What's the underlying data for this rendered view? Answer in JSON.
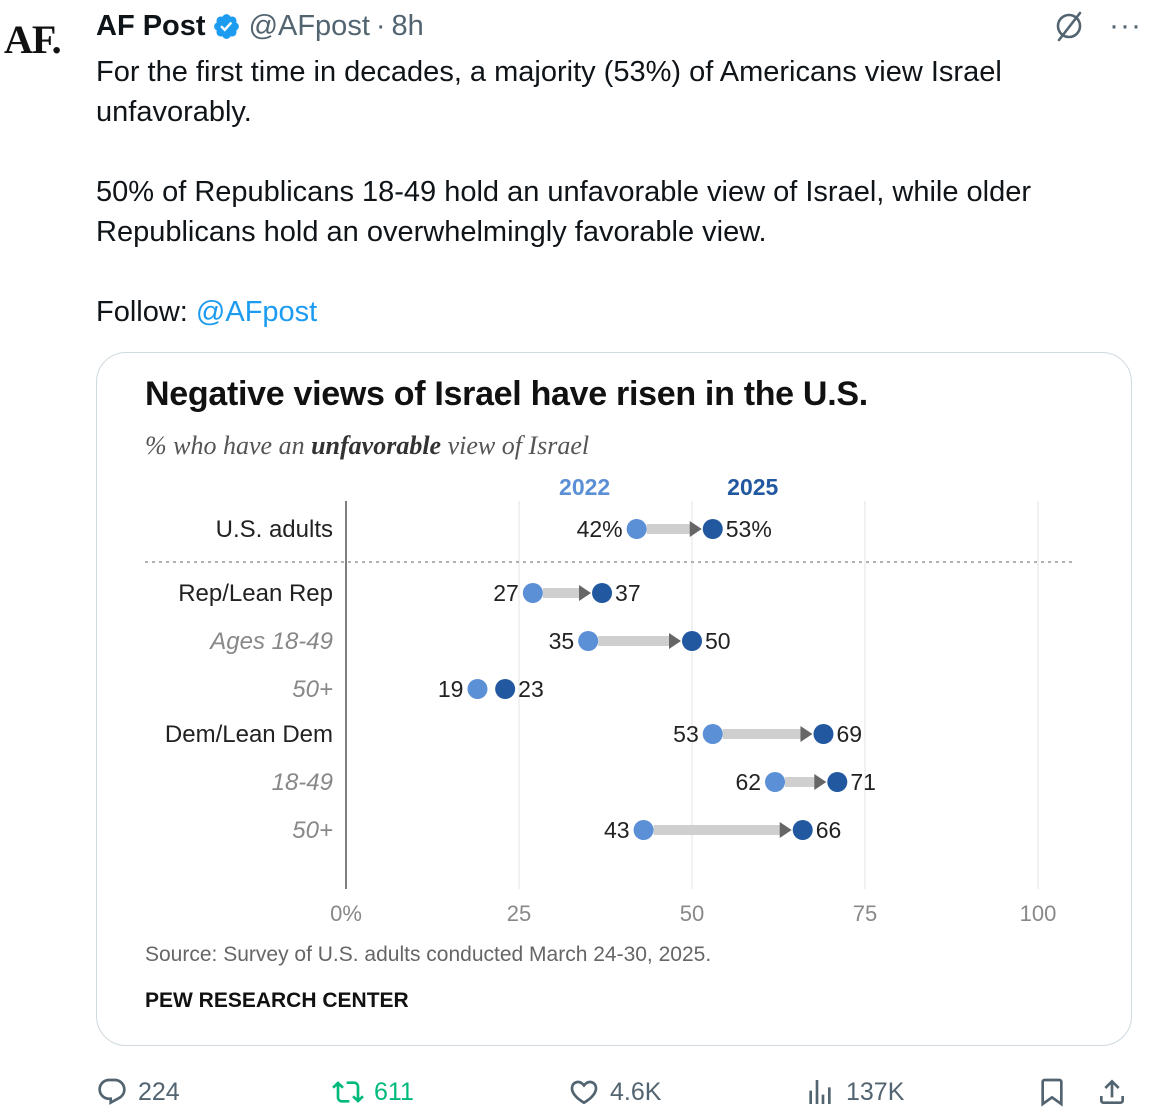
{
  "author": {
    "avatar_text": "AF.",
    "name": "AF Post",
    "handle": "@AFpost",
    "separator": "·",
    "time": "8h"
  },
  "tweet": {
    "line1": "For the first time in decades, a majority (53%) of Americans view Israel unfavorably.",
    "line2": "50% of Republicans 18-49 hold an unfavorable view of Israel, while older Republicans hold an overwhelmingly favorable view.",
    "follow_label": "Follow:",
    "follow_mention": "@AFpost"
  },
  "top_icons": {
    "grok": "grok-icon",
    "more": "···"
  },
  "chart_data": {
    "type": "dumbbell",
    "title": "Negative views of Israel have risen in the U.S.",
    "subtitle_pre": "% who have an ",
    "subtitle_bold": "unfavorable",
    "subtitle_post": " view of Israel",
    "series": [
      {
        "name": "2022",
        "color": "#5b8fd6"
      },
      {
        "name": "2025",
        "color": "#2158a0"
      }
    ],
    "rows": [
      {
        "label": "U.S. adults",
        "style": "bold",
        "v2022": 42,
        "v2025": 53,
        "l2022": "42%",
        "l2025": "53%"
      },
      {
        "label": "Rep/Lean Rep",
        "style": "bold",
        "v2022": 27,
        "v2025": 37,
        "l2022": "27",
        "l2025": "37"
      },
      {
        "label": "Ages 18-49",
        "style": "sub",
        "v2022": 35,
        "v2025": 50,
        "l2022": "35",
        "l2025": "50"
      },
      {
        "label": "50+",
        "style": "sub",
        "v2022": 19,
        "v2025": 23,
        "l2022": "19",
        "l2025": "23"
      },
      {
        "label": "Dem/Lean Dem",
        "style": "bold",
        "v2022": 53,
        "v2025": 69,
        "l2022": "53",
        "l2025": "69"
      },
      {
        "label": "18-49",
        "style": "sub",
        "v2022": 62,
        "v2025": 71,
        "l2022": "62",
        "l2025": "71"
      },
      {
        "label": "50+",
        "style": "sub",
        "v2022": 43,
        "v2025": 66,
        "l2022": "43",
        "l2025": "66"
      }
    ],
    "xlim": [
      0,
      100
    ],
    "xticks": [
      0,
      25,
      50,
      75,
      100
    ],
    "xtick_labels": [
      "0%",
      "25",
      "50",
      "75",
      "100"
    ],
    "grid": true,
    "source": "Source: Survey of U.S. adults conducted March 24-30, 2025.",
    "credit": "PEW RESEARCH CENTER"
  },
  "actions": {
    "replies": "224",
    "retweets": "611",
    "likes": "4.6K",
    "views": "137K"
  },
  "colors": {
    "link": "#1d9bf0",
    "verified": "#1d9bf0",
    "retweet": "#00ba7c",
    "muted": "#536471"
  }
}
